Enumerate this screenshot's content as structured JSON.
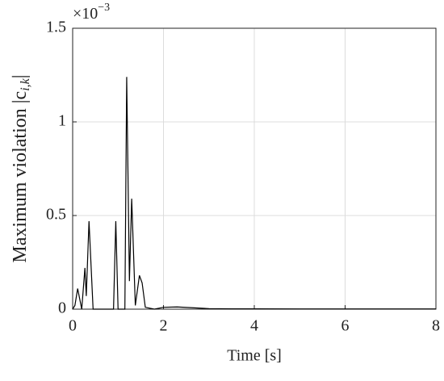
{
  "chart_data": {
    "type": "line",
    "xlabel": "Time [s]",
    "ylabel": {
      "text": "Maximum violation |c",
      "subscript": "i,k",
      "end": "|"
    },
    "multiplier": {
      "base": "×10",
      "exponent": "−3"
    },
    "x": [
      0,
      0.05,
      0.11,
      0.2,
      0.27,
      0.3,
      0.36,
      0.45,
      0.9,
      0.95,
      1.0,
      1.15,
      1.19,
      1.25,
      1.3,
      1.38,
      1.47,
      1.53,
      1.6,
      1.8,
      2.0,
      2.3,
      2.6,
      3.0,
      3.5,
      4.0,
      5.0,
      6.0,
      7.0,
      8.0
    ],
    "series": [
      {
        "name": "violation",
        "color": "#000000",
        "values": [
          0,
          0.02,
          0.11,
          0.0,
          0.22,
          0.07,
          0.47,
          0.0,
          0.0,
          0.47,
          0.0,
          0.0,
          1.24,
          0.15,
          0.59,
          0.02,
          0.18,
          0.14,
          0.01,
          0.0,
          0.01,
          0.012,
          0.008,
          0.003,
          0.002,
          0.002,
          0.001,
          0.001,
          0.001,
          0.001
        ]
      }
    ],
    "xlim": [
      0,
      8
    ],
    "xticks": [
      0,
      2,
      4,
      6,
      8
    ],
    "ylim": [
      0,
      1.5
    ],
    "yticks": [
      0,
      0.5,
      1,
      1.5
    ],
    "grid": true
  }
}
